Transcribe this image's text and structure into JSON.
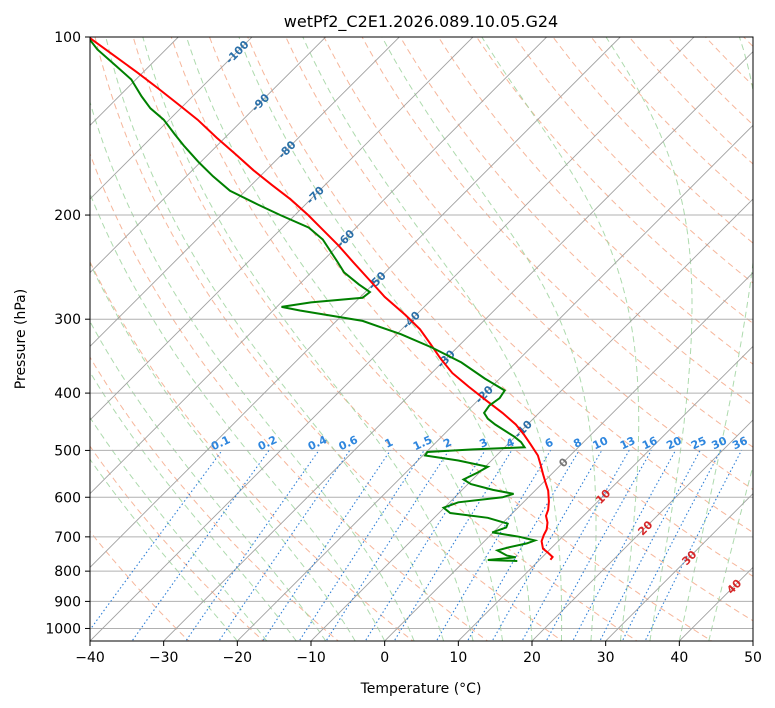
{
  "chart_data": {
    "type": "line",
    "title": "wetPf2_C2E1.2026.089.10.05.G24",
    "xlabel": "Temperature (°C)",
    "ylabel": "Pressure (hPa)",
    "xlim": [
      -40,
      50
    ],
    "ylim": [
      1050,
      100
    ],
    "y_scale": "log",
    "x_ticks": [
      -40,
      -30,
      -20,
      -10,
      0,
      10,
      20,
      30,
      40,
      50
    ],
    "y_ticks": [
      100,
      200,
      300,
      400,
      500,
      600,
      700,
      800,
      900,
      1000
    ],
    "grid": true,
    "skew_isotherm_labels": [
      "-100",
      "-90",
      "-80",
      "-70",
      "-60",
      "-50",
      "-40",
      "-30",
      "-20",
      "-10",
      "0",
      "10",
      "20",
      "30",
      "40"
    ],
    "mixing_ratio_labels": [
      "0.1",
      "0.2",
      "0.4",
      "0.6",
      "1",
      "1.5",
      "2",
      "3",
      "4",
      "6",
      "8",
      "10",
      "13",
      "16",
      "20",
      "25",
      "30",
      "36"
    ],
    "series": [
      {
        "color": "#ff0000",
        "points": [
          [
            765,
            22.5
          ],
          [
            757,
            22.8
          ],
          [
            745,
            22.2
          ],
          [
            733,
            21.5
          ],
          [
            712,
            21.3
          ],
          [
            695,
            21.6
          ],
          [
            680,
            22.0
          ],
          [
            662,
            22.1
          ],
          [
            645,
            21.9
          ],
          [
            630,
            22.2
          ],
          [
            610,
            22.3
          ],
          [
            585,
            22.2
          ],
          [
            565,
            21.8
          ],
          [
            548,
            21.5
          ],
          [
            530,
            21.2
          ],
          [
            510,
            20.8
          ],
          [
            488,
            19.8
          ],
          [
            470,
            18.9
          ],
          [
            452,
            17.8
          ],
          [
            432,
            16.0
          ],
          [
            410,
            13.6
          ],
          [
            390,
            11.4
          ],
          [
            370,
            9.2
          ],
          [
            350,
            7.6
          ],
          [
            330,
            6.2
          ],
          [
            312,
            4.8
          ],
          [
            295,
            2.8
          ],
          [
            275,
            0.0
          ],
          [
            258,
            -2.0
          ],
          [
            240,
            -4.3
          ],
          [
            225,
            -6.3
          ],
          [
            210,
            -8.7
          ],
          [
            200,
            -10.4
          ],
          [
            188,
            -12.8
          ],
          [
            178,
            -15.3
          ],
          [
            168,
            -17.8
          ],
          [
            158,
            -20.2
          ],
          [
            148,
            -22.8
          ],
          [
            138,
            -25.4
          ],
          [
            130,
            -28.0
          ],
          [
            122,
            -30.8
          ],
          [
            115,
            -33.5
          ],
          [
            108,
            -36.5
          ],
          [
            100,
            -40.2
          ]
        ]
      },
      {
        "color": "#008000",
        "points": [
          [
            769,
            18.0
          ],
          [
            766,
            14.0
          ],
          [
            758,
            17.8
          ],
          [
            753,
            16.6
          ],
          [
            738,
            15.3
          ],
          [
            730,
            16.7
          ],
          [
            718,
            19.3
          ],
          [
            710,
            20.4
          ],
          [
            700,
            18.3
          ],
          [
            688,
            14.6
          ],
          [
            675,
            16.5
          ],
          [
            665,
            16.7
          ],
          [
            650,
            14.0
          ],
          [
            638,
            8.9
          ],
          [
            625,
            8.0
          ],
          [
            612,
            10.0
          ],
          [
            600,
            16.0
          ],
          [
            592,
            17.5
          ],
          [
            583,
            14.7
          ],
          [
            570,
            11.7
          ],
          [
            560,
            10.7
          ],
          [
            545,
            12.6
          ],
          [
            533,
            14.0
          ],
          [
            520,
            10.0
          ],
          [
            510,
            5.5
          ],
          [
            503,
            5.8
          ],
          [
            498,
            12.0
          ],
          [
            494,
            19.0
          ],
          [
            484,
            18.5
          ],
          [
            474,
            17.6
          ],
          [
            452,
            15.0
          ],
          [
            442,
            14.0
          ],
          [
            432,
            13.5
          ],
          [
            420,
            14.2
          ],
          [
            408,
            15.6
          ],
          [
            396,
            16.3
          ],
          [
            378,
            13.6
          ],
          [
            355,
            10.4
          ],
          [
            335,
            6.4
          ],
          [
            318,
            2.2
          ],
          [
            302,
            -3.0
          ],
          [
            290,
            -11.5
          ],
          [
            286,
            -14.0
          ],
          [
            281,
            -10.0
          ],
          [
            276,
            -3.0
          ],
          [
            270,
            -2.0
          ],
          [
            262,
            -3.5
          ],
          [
            250,
            -5.5
          ],
          [
            240,
            -6.4
          ],
          [
            220,
            -8.4
          ],
          [
            210,
            -10.3
          ],
          [
            200,
            -14.2
          ],
          [
            192,
            -17.2
          ],
          [
            182,
            -21.0
          ],
          [
            172,
            -23.3
          ],
          [
            163,
            -25.2
          ],
          [
            153,
            -27.2
          ],
          [
            146,
            -28.5
          ],
          [
            138,
            -30.0
          ],
          [
            132,
            -31.8
          ],
          [
            126,
            -33.0
          ],
          [
            118,
            -34.4
          ],
          [
            111,
            -36.8
          ],
          [
            105,
            -39.0
          ],
          [
            100,
            -40.3
          ]
        ]
      }
    ]
  }
}
